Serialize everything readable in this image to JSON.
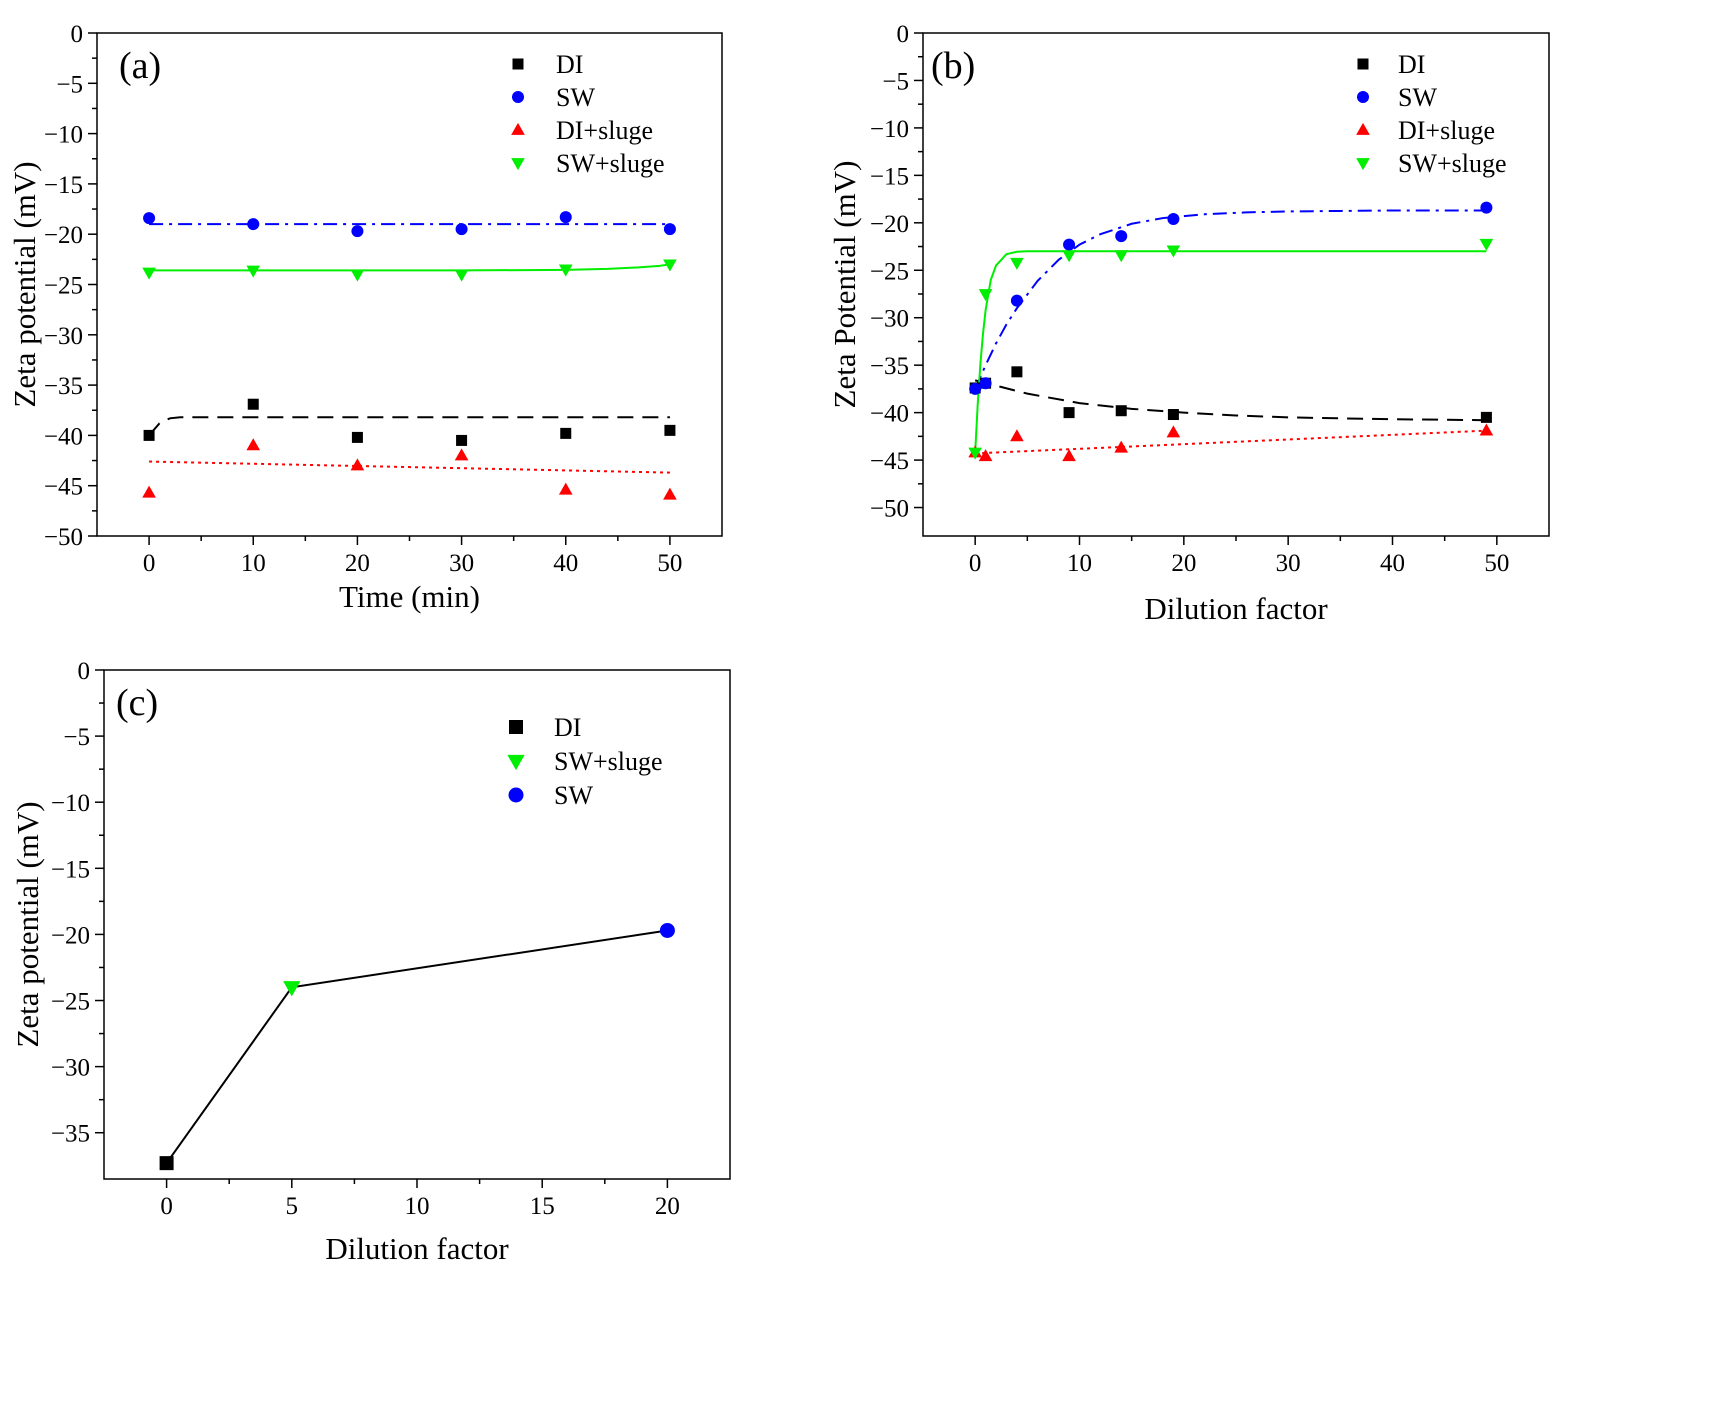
{
  "chart_data": [
    {
      "panel": "(a)",
      "type": "scatter",
      "xlabel": "Time (min)",
      "ylabel": "Zeta potential (mV)",
      "xlim": [
        -5,
        55
      ],
      "ylim": [
        -50,
        0
      ],
      "xticks": [
        0,
        10,
        20,
        30,
        40,
        50
      ],
      "xtick_labels": [
        "0",
        "10",
        "20",
        "30",
        "40",
        "50"
      ],
      "yticks": [
        0,
        -5,
        -10,
        -15,
        -20,
        -25,
        -30,
        -35,
        -40,
        -45,
        -50
      ],
      "ytick_labels": [
        "0",
        "−5",
        "−10",
        "−15",
        "−20",
        "−25",
        "−30",
        "−35",
        "−40",
        "−45",
        "−50"
      ],
      "legend_position": "top-right",
      "series": [
        {
          "name": "DI",
          "marker": "square",
          "color": "#000000",
          "x": [
            0,
            10,
            20,
            30,
            40,
            50
          ],
          "y": [
            -40.0,
            -36.9,
            -40.2,
            -40.5,
            -39.8,
            -39.5
          ],
          "fit": {
            "style": "dashed",
            "x": [
              0,
              1,
              2,
              3,
              5,
              10,
              20,
              30,
              40,
              50
            ],
            "y": [
              -40.0,
              -38.8,
              -38.3,
              -38.2,
              -38.2,
              -38.2,
              -38.2,
              -38.2,
              -38.2,
              -38.2
            ]
          }
        },
        {
          "name": "SW",
          "marker": "circle",
          "color": "#0000ff",
          "x": [
            0,
            10,
            20,
            30,
            40,
            50
          ],
          "y": [
            -18.4,
            -19.0,
            -19.7,
            -19.5,
            -18.3,
            -19.5
          ],
          "fit": {
            "style": "dashdot",
            "x": [
              0,
              50
            ],
            "y": [
              -19.0,
              -19.0
            ]
          }
        },
        {
          "name": "DI+sluge",
          "marker": "triangle-up",
          "color": "#ff0000",
          "x": [
            0,
            10,
            20,
            30,
            40,
            50
          ],
          "y": [
            -45.7,
            -41.0,
            -43.0,
            -42.0,
            -45.4,
            -45.9
          ],
          "fit": {
            "style": "dotted",
            "x": [
              0,
              50
            ],
            "y": [
              -42.6,
              -43.7
            ]
          }
        },
        {
          "name": "SW+sluge",
          "marker": "triangle-down",
          "color": "#00ee00",
          "x": [
            0,
            10,
            20,
            30,
            40,
            50
          ],
          "y": [
            -23.8,
            -23.6,
            -24.0,
            -24.0,
            -23.5,
            -23.0
          ],
          "fit": {
            "style": "solid",
            "x": [
              0,
              10,
              20,
              30,
              40,
              44,
              47,
              49,
              50
            ],
            "y": [
              -23.6,
              -23.6,
              -23.6,
              -23.6,
              -23.55,
              -23.45,
              -23.3,
              -23.15,
              -23.0
            ]
          }
        }
      ]
    },
    {
      "panel": "(b)",
      "type": "scatter",
      "xlabel": "Dilution factor",
      "ylabel": "Zeta Potential (mV)",
      "xlim": [
        -5,
        55
      ],
      "ylim": [
        -53,
        0
      ],
      "xticks": [
        0,
        10,
        20,
        30,
        40,
        50
      ],
      "xtick_labels": [
        "0",
        "10",
        "20",
        "30",
        "40",
        "50"
      ],
      "yticks": [
        0,
        -5,
        -10,
        -15,
        -20,
        -25,
        -30,
        -35,
        -40,
        -45,
        -50
      ],
      "ytick_labels": [
        "0",
        "−5",
        "−10",
        "−15",
        "−20",
        "−25",
        "−30",
        "−35",
        "−40",
        "−45",
        "−50"
      ],
      "legend_position": "top-right",
      "series": [
        {
          "name": "DI",
          "marker": "square",
          "color": "#000000",
          "x": [
            0,
            1,
            4,
            9,
            14,
            19,
            49
          ],
          "y": [
            -37.4,
            -36.9,
            -35.7,
            -40.0,
            -39.8,
            -40.2,
            -40.5
          ],
          "fit": {
            "style": "dashed",
            "x": [
              0,
              5,
              10,
              15,
              20,
              25,
              30,
              35,
              40,
              45,
              49
            ],
            "y": [
              -36.6,
              -38.0,
              -39.0,
              -39.6,
              -40.0,
              -40.3,
              -40.5,
              -40.6,
              -40.7,
              -40.75,
              -40.8
            ]
          }
        },
        {
          "name": "SW",
          "marker": "circle",
          "color": "#0000ff",
          "x": [
            0,
            1,
            4,
            9,
            14,
            19,
            49
          ],
          "y": [
            -37.5,
            -36.9,
            -28.2,
            -22.3,
            -21.4,
            -19.6,
            -18.4
          ],
          "fit": {
            "style": "dashdot",
            "x": [
              0,
              1,
              2,
              3,
              4,
              6,
              8,
              10,
              12,
              15,
              18,
              22,
              26,
              30,
              35,
              40,
              45,
              49
            ],
            "y": [
              -37.5,
              -35.0,
              -32.7,
              -30.7,
              -29.0,
              -26.1,
              -23.9,
              -22.3,
              -21.2,
              -20.1,
              -19.5,
              -19.1,
              -18.9,
              -18.8,
              -18.75,
              -18.7,
              -18.7,
              -18.7
            ]
          }
        },
        {
          "name": "DI+sluge",
          "marker": "triangle-up",
          "color": "#ff0000",
          "x": [
            0,
            1,
            4,
            9,
            14,
            19,
            49
          ],
          "y": [
            -44.2,
            -44.6,
            -42.5,
            -44.6,
            -43.7,
            -42.1,
            -41.9
          ],
          "fit": {
            "style": "dotted",
            "x": [
              0,
              49
            ],
            "y": [
              -44.3,
              -41.9
            ]
          }
        },
        {
          "name": "SW+sluge",
          "marker": "triangle-down",
          "color": "#00ee00",
          "x": [
            0,
            1,
            4,
            9,
            14,
            19,
            49
          ],
          "y": [
            -44.2,
            -27.5,
            -24.2,
            -23.4,
            -23.4,
            -22.9,
            -22.2
          ],
          "fit": {
            "style": "solid",
            "x": [
              0,
              0.25,
              0.5,
              0.75,
              1,
              1.5,
              2,
              3,
              4,
              5,
              6,
              49
            ],
            "y": [
              -44.2,
              -39.0,
              -34.9,
              -31.7,
              -29.2,
              -26.0,
              -24.5,
              -23.3,
              -23.05,
              -23.0,
              -23.0,
              -23.0
            ]
          }
        }
      ]
    },
    {
      "panel": "(c)",
      "type": "line",
      "xlabel": "Dilution factor",
      "ylabel": "Zeta potential (mV)",
      "xlim": [
        -2.5,
        22.5
      ],
      "ylim": [
        -38.5,
        0
      ],
      "xticks": [
        0,
        5,
        10,
        15,
        20
      ],
      "xtick_labels": [
        "0",
        "5",
        "10",
        "15",
        "20"
      ],
      "yticks": [
        0,
        -5,
        -10,
        -15,
        -20,
        -25,
        -30,
        -35
      ],
      "ytick_labels": [
        "0",
        "−5",
        "−10",
        "−15",
        "−20",
        "−25",
        "−30",
        "−35"
      ],
      "legend_position": "top-right",
      "line": {
        "x": [
          0,
          5,
          20
        ],
        "y": [
          -37.3,
          -24.0,
          -19.7
        ],
        "color": "#000000"
      },
      "series": [
        {
          "name": "DI",
          "marker": "square",
          "color": "#000000",
          "x": [
            0
          ],
          "y": [
            -37.3
          ]
        },
        {
          "name": "SW+sluge",
          "marker": "triangle-down",
          "color": "#00ee00",
          "x": [
            5
          ],
          "y": [
            -24.0
          ]
        },
        {
          "name": "SW",
          "marker": "circle",
          "color": "#0000ff",
          "x": [
            20
          ],
          "y": [
            -19.7
          ]
        }
      ]
    }
  ]
}
